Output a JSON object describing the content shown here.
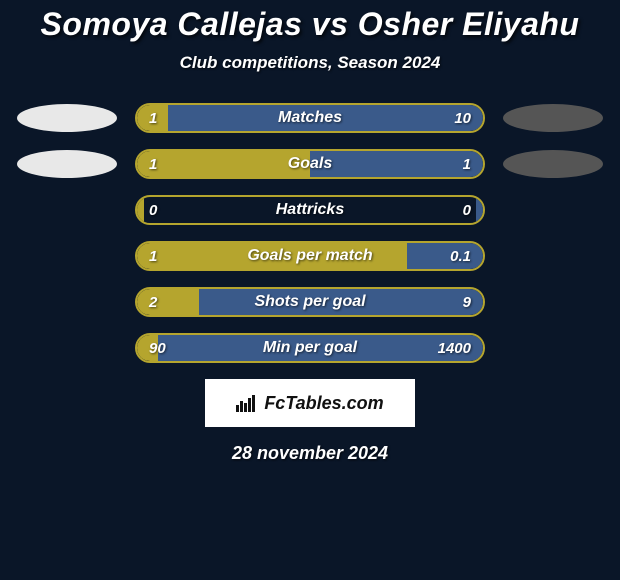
{
  "title": "Somoya Callejas vs Osher Eliyahu",
  "subtitle": "Club competitions, Season 2024",
  "left_color": "#b5a52e",
  "right_color": "#3a5a8a",
  "ellipse_left_color": "#e8e8e8",
  "ellipse_right_color": "#555555",
  "background_color": "#0a1628",
  "text_color": "#ffffff",
  "metrics": [
    {
      "label": "Matches",
      "left_val": "1",
      "right_val": "10",
      "left_pct": 9,
      "right_pct": 91,
      "show_ellipses": true
    },
    {
      "label": "Goals",
      "left_val": "1",
      "right_val": "1",
      "left_pct": 50,
      "right_pct": 50,
      "show_ellipses": true
    },
    {
      "label": "Hattricks",
      "left_val": "0",
      "right_val": "0",
      "left_pct": 2,
      "right_pct": 2,
      "show_ellipses": false
    },
    {
      "label": "Goals per match",
      "left_val": "1",
      "right_val": "0.1",
      "left_pct": 78,
      "right_pct": 22,
      "show_ellipses": false
    },
    {
      "label": "Shots per goal",
      "left_val": "2",
      "right_val": "9",
      "left_pct": 18,
      "right_pct": 82,
      "show_ellipses": false
    },
    {
      "label": "Min per goal",
      "left_val": "90",
      "right_val": "1400",
      "left_pct": 6,
      "right_pct": 94,
      "show_ellipses": false
    }
  ],
  "logo_text": "FcTables.com",
  "date": "28 november 2024"
}
